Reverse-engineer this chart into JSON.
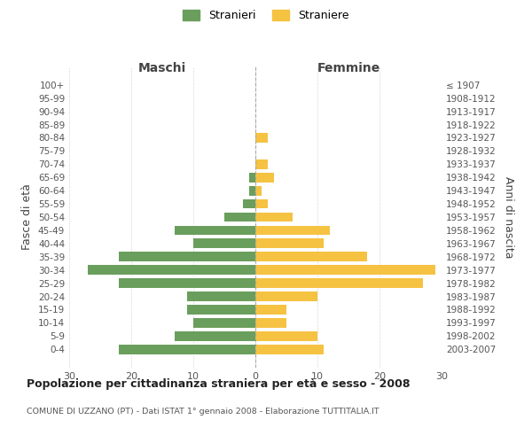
{
  "age_groups": [
    "100+",
    "95-99",
    "90-94",
    "85-89",
    "80-84",
    "75-79",
    "70-74",
    "65-69",
    "60-64",
    "55-59",
    "50-54",
    "45-49",
    "40-44",
    "35-39",
    "30-34",
    "25-29",
    "20-24",
    "15-19",
    "10-14",
    "5-9",
    "0-4"
  ],
  "birth_years": [
    "≤ 1907",
    "1908-1912",
    "1913-1917",
    "1918-1922",
    "1923-1927",
    "1928-1932",
    "1933-1937",
    "1938-1942",
    "1943-1947",
    "1948-1952",
    "1953-1957",
    "1958-1962",
    "1963-1967",
    "1968-1972",
    "1973-1977",
    "1978-1982",
    "1983-1987",
    "1988-1992",
    "1993-1997",
    "1998-2002",
    "2003-2007"
  ],
  "maschi": [
    0,
    0,
    0,
    0,
    0,
    0,
    0,
    1,
    1,
    2,
    5,
    13,
    10,
    22,
    27,
    22,
    11,
    11,
    10,
    13,
    22
  ],
  "femmine": [
    0,
    0,
    0,
    0,
    2,
    0,
    2,
    3,
    1,
    2,
    6,
    12,
    11,
    18,
    29,
    27,
    10,
    5,
    5,
    10,
    11
  ],
  "maschi_color": "#6a9e5c",
  "femmine_color": "#f5c242",
  "background_color": "#ffffff",
  "grid_color": "#cccccc",
  "title": "Popolazione per cittadinanza straniera per età e sesso - 2008",
  "subtitle": "COMUNE DI UZZANO (PT) - Dati ISTAT 1° gennaio 2008 - Elaborazione TUTTITALIA.IT",
  "xlabel_left": "Maschi",
  "xlabel_right": "Femmine",
  "ylabel_left": "Fasce di età",
  "ylabel_right": "Anni di nascita",
  "legend_maschi": "Stranieri",
  "legend_femmine": "Straniere",
  "xlim": 30
}
